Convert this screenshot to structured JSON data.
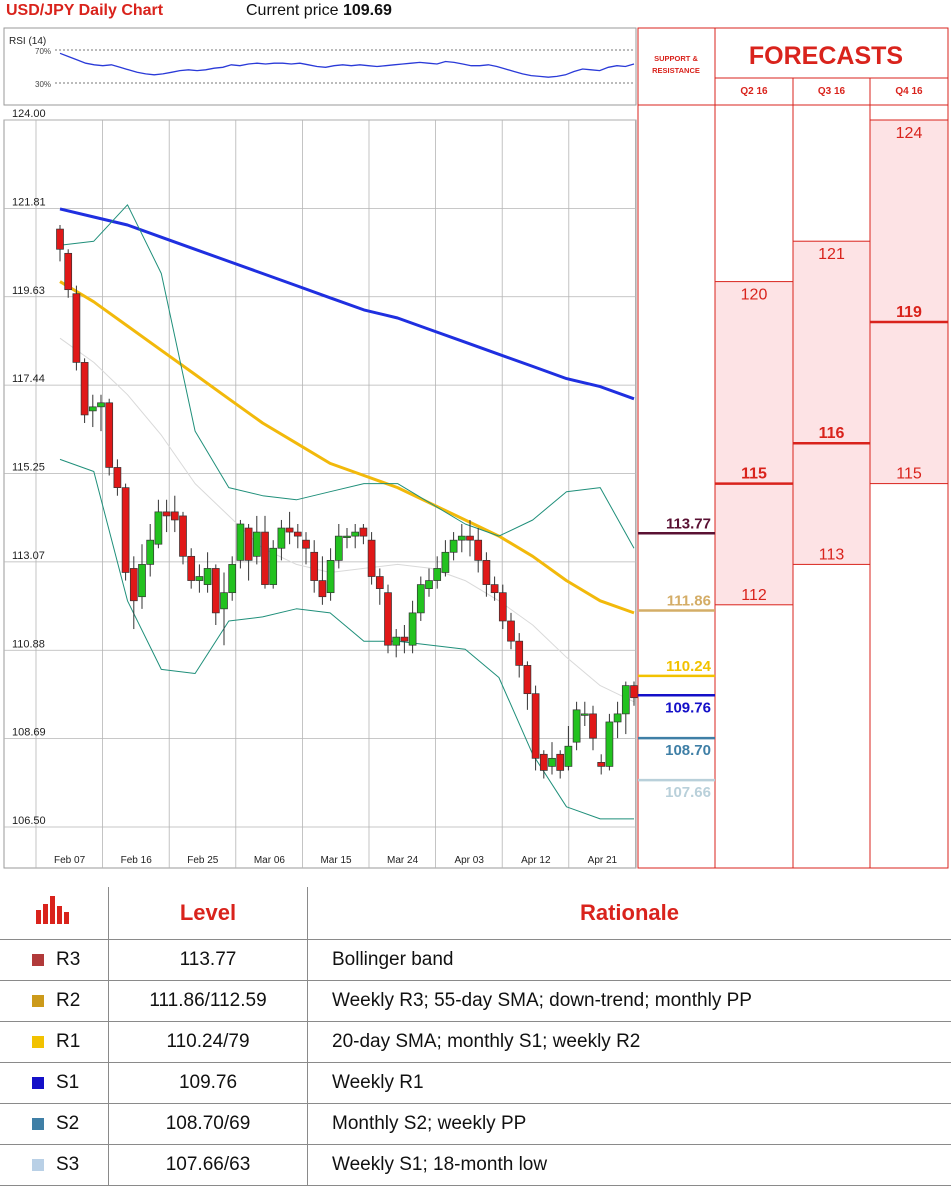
{
  "header": {
    "title": "USD/JPY Daily Chart",
    "price_label": "Current price",
    "price_value": "109.69"
  },
  "rsi": {
    "label": "RSI (14)",
    "levels": [
      "70%",
      "30%"
    ],
    "values": [
      66,
      62,
      58,
      54,
      52,
      51,
      52,
      49,
      46,
      43,
      41,
      40,
      41,
      43,
      45,
      46,
      45,
      46,
      48,
      49,
      52,
      51,
      53,
      54,
      53,
      54,
      54,
      53,
      54,
      52,
      50,
      49,
      51,
      52,
      51,
      52,
      51,
      50,
      51,
      52,
      53,
      54,
      55,
      54,
      53,
      56,
      55,
      53,
      51,
      51,
      52,
      50,
      47,
      44,
      41,
      39,
      38,
      37,
      38,
      40,
      44,
      47,
      46,
      45,
      49,
      51,
      50,
      53
    ],
    "color": "#2a3ad8"
  },
  "chart_data": [
    {
      "type": "candlestick",
      "title": "USD/JPY Daily Chart",
      "ylim": [
        106.5,
        124.0
      ],
      "y_ticks": [
        "124.00",
        "121.81",
        "119.63",
        "117.44",
        "115.25",
        "113.07",
        "110.88",
        "108.69",
        "106.50"
      ],
      "x_ticks": [
        "Feb 07",
        "Feb 16",
        "Feb 25",
        "Mar 06",
        "Mar 15",
        "Mar 24",
        "Apr 03",
        "Apr 12",
        "Apr 21"
      ],
      "candles": [
        [
          121.3,
          120.8,
          121.4,
          120.5
        ],
        [
          120.7,
          119.8,
          120.8,
          119.6
        ],
        [
          119.7,
          118.0,
          119.9,
          117.8
        ],
        [
          118.0,
          116.7,
          118.1,
          116.5
        ],
        [
          116.8,
          116.9,
          117.2,
          116.4
        ],
        [
          116.9,
          117.0,
          117.2,
          116.3
        ],
        [
          117.0,
          115.4,
          117.1,
          115.2
        ],
        [
          115.4,
          114.9,
          115.6,
          114.7
        ],
        [
          114.9,
          112.8,
          115.0,
          112.6
        ],
        [
          112.9,
          112.1,
          113.2,
          111.4
        ],
        [
          112.2,
          113.0,
          113.5,
          111.9
        ],
        [
          113.0,
          113.6,
          114.0,
          112.7
        ],
        [
          113.5,
          114.3,
          114.6,
          113.4
        ],
        [
          114.3,
          114.2,
          114.6,
          113.8
        ],
        [
          114.3,
          114.1,
          114.7,
          113.8
        ],
        [
          114.2,
          113.2,
          114.3,
          113.0
        ],
        [
          113.2,
          112.6,
          113.4,
          112.4
        ],
        [
          112.6,
          112.7,
          113.0,
          112.3
        ],
        [
          112.5,
          112.9,
          113.3,
          112.3
        ],
        [
          112.9,
          111.8,
          113.0,
          111.5
        ],
        [
          111.9,
          112.3,
          112.8,
          111.0
        ],
        [
          112.3,
          113.0,
          113.2,
          112.1
        ],
        [
          113.1,
          114.0,
          114.1,
          112.9
        ],
        [
          113.9,
          113.1,
          114.0,
          112.6
        ],
        [
          113.2,
          113.8,
          114.2,
          113.0
        ],
        [
          113.8,
          112.5,
          114.2,
          112.4
        ],
        [
          112.5,
          113.4,
          113.6,
          112.4
        ],
        [
          113.4,
          113.9,
          114.1,
          113.1
        ],
        [
          113.9,
          113.8,
          114.3,
          113.5
        ],
        [
          113.8,
          113.7,
          114.0,
          113.4
        ],
        [
          113.6,
          113.4,
          113.8,
          113.0
        ],
        [
          113.3,
          112.6,
          113.6,
          112.3
        ],
        [
          112.6,
          112.2,
          113.2,
          112.0
        ],
        [
          112.3,
          113.1,
          113.4,
          112.1
        ],
        [
          113.1,
          113.7,
          114.0,
          112.9
        ],
        [
          113.7,
          113.7,
          113.9,
          113.4
        ],
        [
          113.7,
          113.8,
          114.0,
          113.4
        ],
        [
          113.9,
          113.7,
          114.0,
          113.5
        ],
        [
          113.6,
          112.7,
          113.8,
          112.5
        ],
        [
          112.7,
          112.4,
          112.9,
          112.0
        ],
        [
          112.3,
          111.0,
          112.5,
          110.8
        ],
        [
          111.0,
          111.2,
          111.4,
          110.7
        ],
        [
          111.2,
          111.1,
          111.5,
          110.8
        ],
        [
          111.0,
          111.8,
          112.1,
          110.8
        ],
        [
          111.8,
          112.5,
          112.7,
          111.6
        ],
        [
          112.4,
          112.6,
          112.9,
          112.2
        ],
        [
          112.6,
          112.9,
          113.2,
          112.4
        ],
        [
          112.8,
          113.3,
          113.6,
          112.7
        ],
        [
          113.3,
          113.6,
          113.8,
          113.1
        ],
        [
          113.6,
          113.7,
          114.0,
          113.3
        ],
        [
          113.7,
          113.6,
          114.1,
          113.2
        ],
        [
          113.6,
          113.1,
          113.9,
          112.8
        ],
        [
          113.1,
          112.5,
          113.3,
          112.2
        ],
        [
          112.5,
          112.3,
          112.7,
          112.1
        ],
        [
          112.3,
          111.6,
          112.5,
          111.4
        ],
        [
          111.6,
          111.1,
          111.8,
          110.9
        ],
        [
          111.1,
          110.5,
          111.3,
          110.2
        ],
        [
          110.5,
          109.8,
          110.6,
          109.4
        ],
        [
          109.8,
          108.2,
          110.0,
          107.9
        ],
        [
          108.3,
          107.9,
          108.4,
          107.7
        ],
        [
          108.0,
          108.2,
          108.6,
          107.8
        ],
        [
          108.3,
          107.9,
          108.4,
          107.7
        ],
        [
          108.0,
          108.5,
          109.0,
          107.9
        ],
        [
          108.6,
          109.4,
          109.6,
          108.4
        ],
        [
          109.3,
          109.3,
          109.6,
          109.0
        ],
        [
          109.3,
          108.7,
          109.5,
          108.4
        ],
        [
          108.1,
          108.0,
          108.3,
          107.8
        ],
        [
          108.0,
          109.1,
          109.3,
          107.9
        ],
        [
          109.1,
          109.3,
          109.6,
          108.7
        ],
        [
          109.3,
          110.0,
          110.1,
          108.8
        ],
        [
          110.0,
          109.7,
          110.1,
          109.5
        ]
      ],
      "candle_format": [
        "open",
        "close",
        "high",
        "low"
      ],
      "series": [
        {
          "name": "200-day SMA",
          "color": "#1f2fe0",
          "values": [
            121.8,
            121.6,
            121.4,
            121.1,
            120.8,
            120.5,
            120.2,
            119.9,
            119.6,
            119.3,
            119.1,
            118.8,
            118.5,
            118.2,
            117.9,
            117.6,
            117.4,
            117.1
          ]
        },
        {
          "name": "55-day SMA",
          "color": "#f2b90b",
          "values": [
            120.0,
            119.5,
            118.9,
            118.3,
            117.7,
            117.1,
            116.5,
            116.0,
            115.5,
            115.2,
            114.9,
            114.5,
            114.1,
            113.7,
            113.2,
            112.6,
            112.1,
            111.8
          ]
        },
        {
          "name": "Bollinger upper",
          "color": "#1f8f7a",
          "values": [
            120.9,
            121.0,
            121.9,
            120.2,
            116.3,
            114.9,
            114.7,
            114.6,
            114.8,
            115.0,
            115.0,
            114.5,
            114.0,
            113.7,
            114.1,
            114.8,
            114.9,
            113.4
          ]
        },
        {
          "name": "Bollinger lower",
          "color": "#1f8f7a",
          "values": [
            115.6,
            115.3,
            112.1,
            110.4,
            110.3,
            111.6,
            111.7,
            111.9,
            111.8,
            111.1,
            111.1,
            111.0,
            110.9,
            110.2,
            108.3,
            107.0,
            106.7,
            106.7
          ]
        },
        {
          "name": "Bollinger middle",
          "color": "#d9d9d9",
          "values": [
            118.6,
            118.0,
            117.2,
            116.2,
            115.0,
            114.2,
            113.4,
            113.0,
            112.8,
            112.9,
            113.0,
            112.9,
            112.6,
            112.1,
            111.5,
            110.7,
            110.0,
            109.6
          ]
        }
      ],
      "levels": [
        {
          "value": "113.77",
          "price": 113.77,
          "color": "#5a1133"
        },
        {
          "value": "111.86",
          "price": 111.86,
          "color": "#d4ad67"
        },
        {
          "value": "110.24",
          "price": 110.24,
          "color": "#f2c200"
        },
        {
          "value": "109.76",
          "price": 109.76,
          "color": "#1410c8"
        },
        {
          "value": "108.70",
          "price": 108.7,
          "color": "#3f7fa6"
        },
        {
          "value": "107.66",
          "price": 107.66,
          "color": "#b9d0da"
        }
      ]
    }
  ],
  "forecasts": {
    "title": "FORECASTS",
    "sr_label": "SUPPORT & RESISTANCE",
    "columns": [
      {
        "label": "Q2 16",
        "high": "120",
        "mid": "115",
        "low": "112",
        "high_v": 120,
        "mid_v": 115,
        "low_v": 112
      },
      {
        "label": "Q3 16",
        "high": "121",
        "mid": "116",
        "low": "113",
        "high_v": 121,
        "mid_v": 116,
        "low_v": 113
      },
      {
        "label": "Q4 16",
        "high": "124",
        "mid": "119",
        "low": "115",
        "high_v": 124,
        "mid_v": 119,
        "low_v": 115
      }
    ]
  },
  "table": {
    "headers": {
      "level": "Level",
      "rationale": "Rationale"
    },
    "rows": [
      {
        "name": "R3",
        "level": "113.77",
        "rationale": "Bollinger band",
        "color": "#b13a3a"
      },
      {
        "name": "R2",
        "level": "111.86/112.59",
        "rationale": "Weekly R3; 55-day SMA; down-trend; monthly PP",
        "color": "#cc9a1a"
      },
      {
        "name": "R1",
        "level": "110.24/79",
        "rationale": "20-day SMA; monthly S1; weekly R2",
        "color": "#f2c200"
      },
      {
        "name": "S1",
        "level": "109.76",
        "rationale": "Weekly R1",
        "color": "#1410c8"
      },
      {
        "name": "S2",
        "level": "108.70/69",
        "rationale": "Monthly S2; weekly PP",
        "color": "#3f7fa6"
      },
      {
        "name": "S3",
        "level": "107.66/63",
        "rationale": "Weekly S1; 18-month low",
        "color": "#b9d0e6"
      }
    ]
  }
}
